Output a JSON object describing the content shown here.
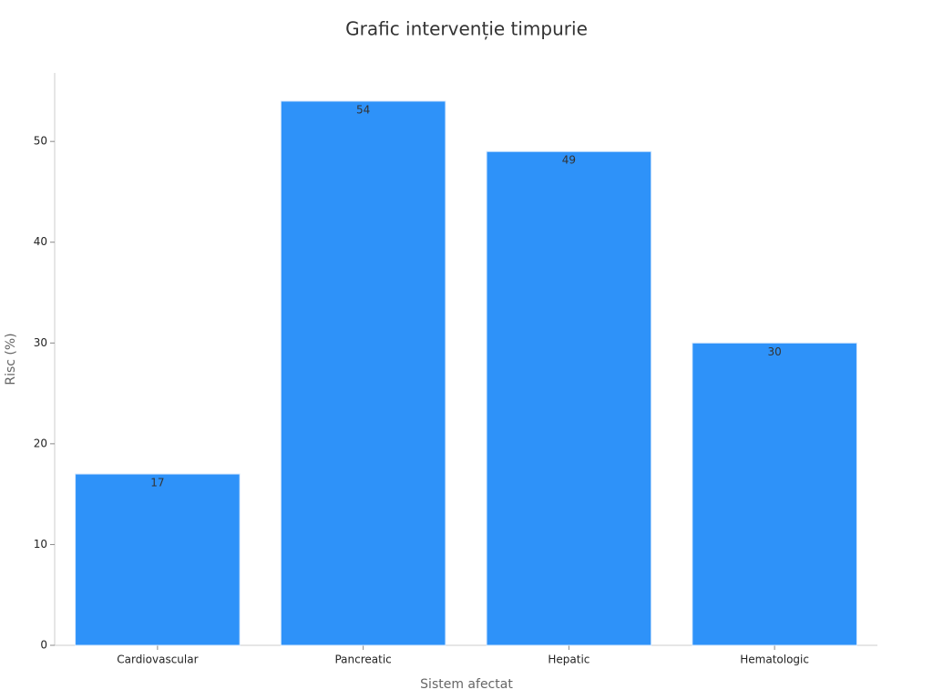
{
  "chart_data": {
    "type": "bar",
    "title": "Grafic intervenție timpurie",
    "x_label": "Sistem afectat",
    "y_label": "Risc (%)",
    "categories": [
      "Cardiovascular",
      "Pancreatic",
      "Hepatic",
      "Hematologic"
    ],
    "values": [
      17,
      54,
      49,
      30
    ],
    "color": "#2e92f9",
    "ylim": [
      0,
      56.8
    ],
    "yticks": [
      0,
      10,
      20,
      30,
      40,
      50
    ],
    "grid": false
  }
}
